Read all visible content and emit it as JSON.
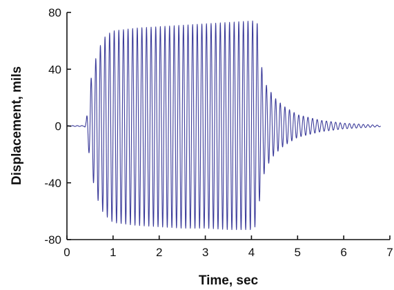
{
  "chart_data": {
    "type": "line",
    "title": "",
    "xlabel": "Time, sec",
    "ylabel": "Displacement, mils",
    "xlim": [
      0,
      7
    ],
    "ylim": [
      -80,
      80
    ],
    "x_ticks": [
      0,
      1,
      2,
      3,
      4,
      5,
      6,
      7
    ],
    "y_ticks": [
      -80,
      -40,
      0,
      40,
      80
    ],
    "grid": false,
    "legend": "none",
    "series": [
      {
        "color": "#3b3b9a",
        "style": "oscillation",
        "cycle_period_sec": 0.1,
        "baseline": 0,
        "samples": [
          {
            "t": 0.0,
            "peak": 0.3,
            "trough": -0.3
          },
          {
            "t": 0.38,
            "peak": 0.3,
            "trough": -0.3
          },
          {
            "t": 0.42,
            "peak": 4,
            "trough": -4
          },
          {
            "t": 0.5,
            "peak": 30,
            "trough": -25
          },
          {
            "t": 0.6,
            "peak": 45,
            "trough": -45
          },
          {
            "t": 0.7,
            "peak": 55,
            "trough": -55
          },
          {
            "t": 0.8,
            "peak": 62,
            "trough": -62
          },
          {
            "t": 0.9,
            "peak": 65,
            "trough": -65
          },
          {
            "t": 1.0,
            "peak": 67,
            "trough": -68
          },
          {
            "t": 1.5,
            "peak": 69,
            "trough": -70
          },
          {
            "t": 2.0,
            "peak": 70,
            "trough": -71
          },
          {
            "t": 2.5,
            "peak": 71,
            "trough": -72
          },
          {
            "t": 3.0,
            "peak": 72,
            "trough": -72
          },
          {
            "t": 3.5,
            "peak": 73,
            "trough": -73
          },
          {
            "t": 4.0,
            "peak": 74,
            "trough": -73
          },
          {
            "t": 4.12,
            "peak": 74,
            "trough": -70
          },
          {
            "t": 4.2,
            "peak": 45,
            "trough": -45
          },
          {
            "t": 4.3,
            "peak": 30,
            "trough": -30
          },
          {
            "t": 4.5,
            "peak": 20,
            "trough": -20
          },
          {
            "t": 4.7,
            "peak": 14,
            "trough": -14
          },
          {
            "t": 5.0,
            "peak": 8,
            "trough": -8
          },
          {
            "t": 5.5,
            "peak": 4,
            "trough": -4
          },
          {
            "t": 6.0,
            "peak": 2,
            "trough": -2
          },
          {
            "t": 6.5,
            "peak": 1,
            "trough": -1
          },
          {
            "t": 6.8,
            "peak": 0.5,
            "trough": -0.5
          }
        ]
      }
    ]
  }
}
